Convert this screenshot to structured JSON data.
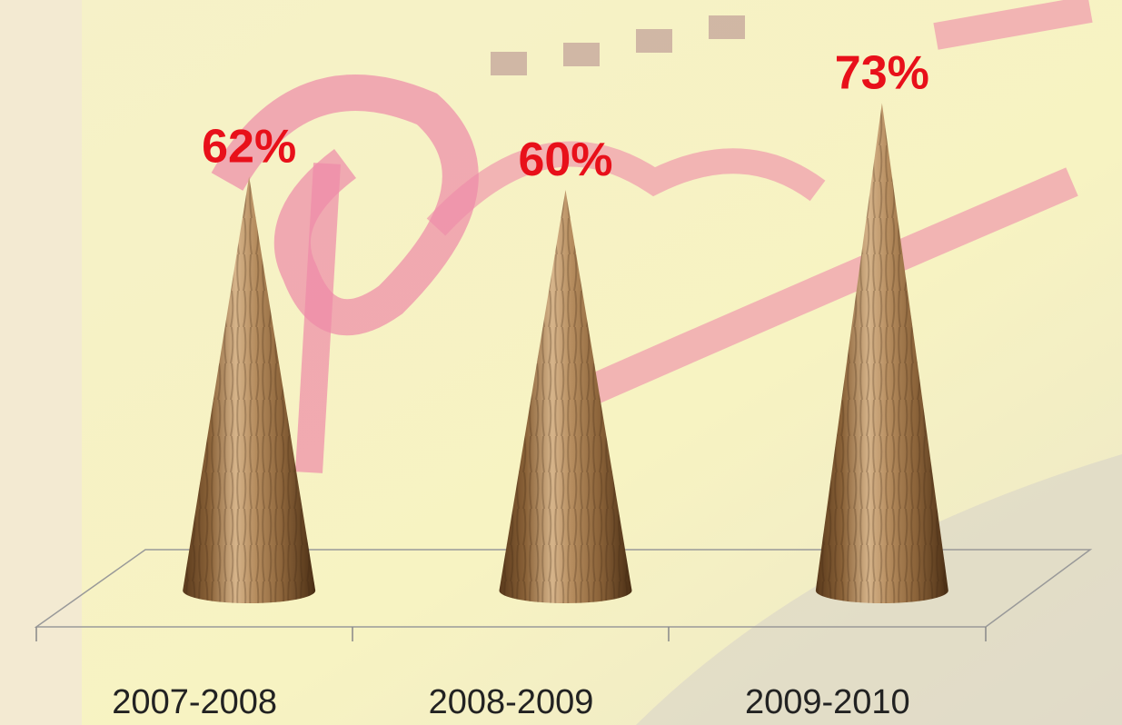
{
  "chart_data": {
    "type": "cone",
    "categories": [
      "2007-2008",
      "2008-2009",
      "2009-2010"
    ],
    "values": [
      62,
      60,
      73
    ],
    "value_labels": [
      "62%",
      "60%",
      "73%"
    ],
    "label_color": "#e8101a"
  }
}
